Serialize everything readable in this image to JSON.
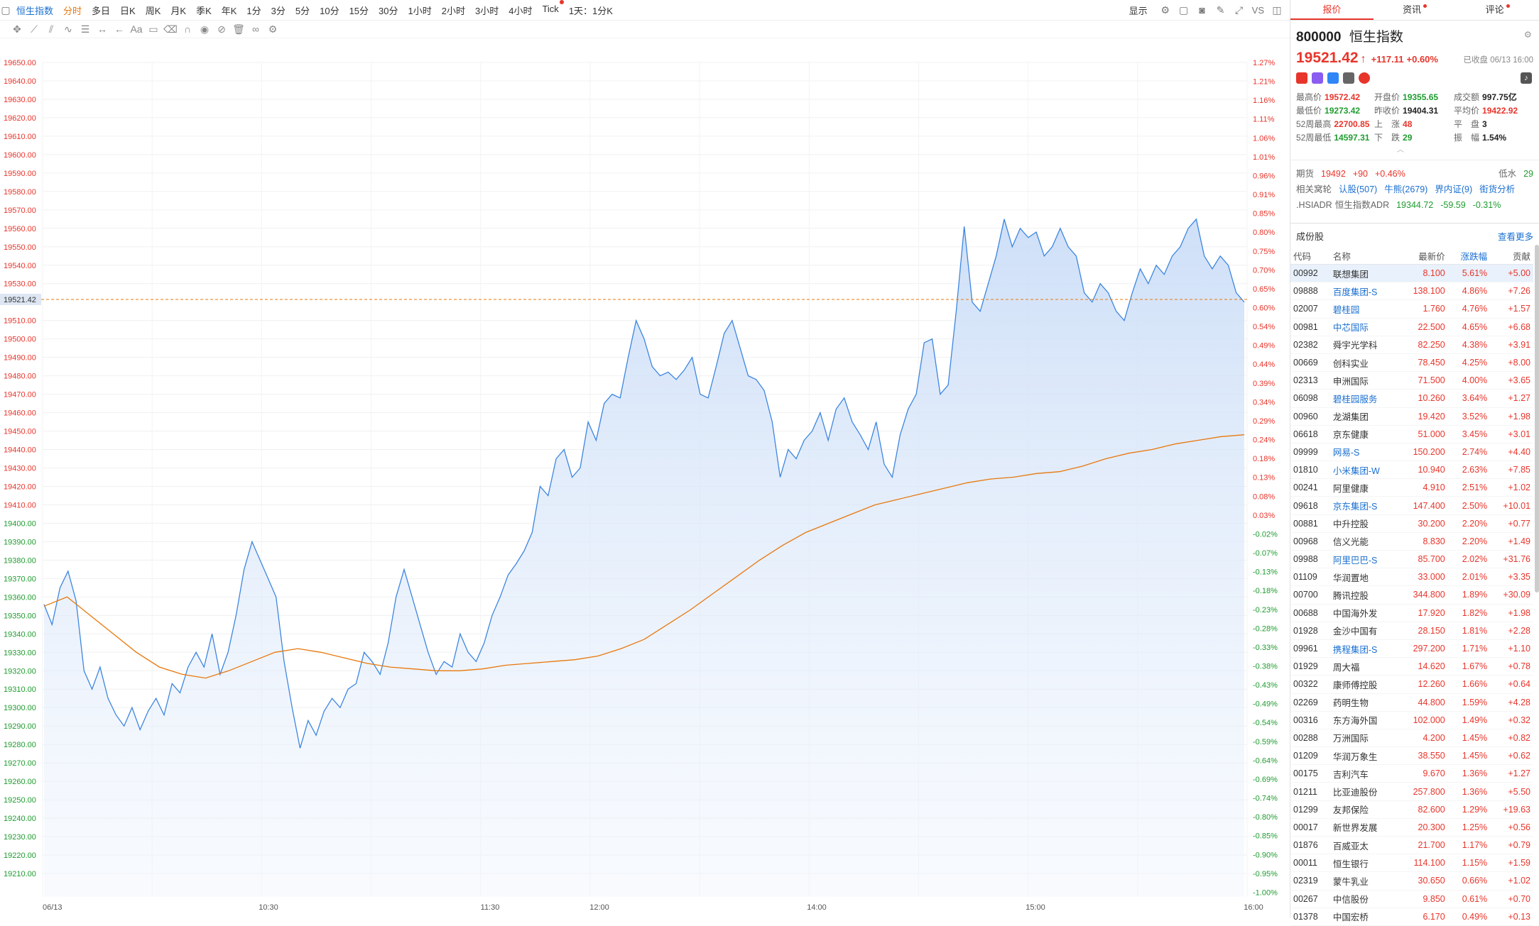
{
  "toolbar": {
    "symbol": "恒生指数",
    "periods": [
      "分时",
      "多日",
      "日K",
      "周K",
      "月K",
      "季K",
      "年K",
      "1分",
      "3分",
      "5分",
      "10分",
      "15分",
      "30分",
      "1小时",
      "2小时",
      "3小时",
      "4小时",
      "Tick",
      "1天：1分K"
    ],
    "active_period": "分时",
    "display_label": "显示",
    "vs_label": "VS"
  },
  "chart": {
    "current_price_label": "19521.42",
    "price_ticks": [
      "19650.00",
      "19640.00",
      "19630.00",
      "19620.00",
      "19610.00",
      "19600.00",
      "19590.00",
      "19580.00",
      "19570.00",
      "19560.00",
      "19550.00",
      "19540.00",
      "19530.00",
      "19510.00",
      "19500.00",
      "19490.00",
      "19480.00",
      "19470.00",
      "19460.00",
      "19450.00",
      "19440.00",
      "19430.00",
      "19420.00",
      "19410.00",
      "19400.00",
      "19390.00",
      "19380.00",
      "19370.00",
      "19360.00",
      "19350.00",
      "19340.00",
      "19330.00",
      "19320.00",
      "19310.00",
      "19300.00",
      "19290.00",
      "19280.00",
      "19270.00",
      "19260.00",
      "19250.00",
      "19240.00",
      "19230.00",
      "19220.00",
      "19210.00"
    ],
    "pct_ticks": [
      "1.27%",
      "1.21%",
      "1.16%",
      "1.11%",
      "1.06%",
      "1.01%",
      "0.96%",
      "0.91%",
      "0.85%",
      "0.80%",
      "0.75%",
      "0.70%",
      "0.65%",
      "0.60%",
      "0.54%",
      "0.49%",
      "0.44%",
      "0.39%",
      "0.34%",
      "0.29%",
      "0.24%",
      "0.18%",
      "0.13%",
      "0.08%",
      "0.03%",
      "-0.02%",
      "-0.07%",
      "-0.13%",
      "-0.18%",
      "-0.23%",
      "-0.28%",
      "-0.33%",
      "-0.38%",
      "-0.43%",
      "-0.49%",
      "-0.54%",
      "-0.59%",
      "-0.64%",
      "-0.69%",
      "-0.74%",
      "-0.80%",
      "-0.85%",
      "-0.90%",
      "-0.95%",
      "-1.00%"
    ],
    "time_ticks": [
      "06/13",
      "10:30",
      "11:30",
      "12:00",
      "14:00",
      "15:00",
      "16:00"
    ]
  },
  "chart_data": {
    "type": "line",
    "ylim": [
      19205,
      19655
    ],
    "series": [
      {
        "values": [
          19356,
          19345,
          19365,
          19374,
          19358,
          19320,
          19310,
          19322,
          19305,
          19296,
          19290,
          19300,
          19288,
          19298,
          19305,
          19296,
          19313,
          19308,
          19322,
          19330,
          19322,
          19340,
          19318,
          19330,
          19350,
          19375,
          19390,
          19380,
          19370,
          19360,
          19325,
          19300,
          19278,
          19293,
          19285,
          19298,
          19305,
          19300,
          19310,
          19313,
          19330,
          19325,
          19318,
          19335,
          19360,
          19375,
          19360,
          19345,
          19330,
          19318,
          19325,
          19322,
          19340,
          19330,
          19325,
          19335,
          19350,
          19360,
          19372,
          19378,
          19385,
          19395,
          19420,
          19415,
          19435,
          19440,
          19425,
          19430,
          19455,
          19445,
          19465,
          19470,
          19468,
          19490,
          19510,
          19500,
          19485,
          19480,
          19482,
          19478,
          19483,
          19490,
          19470,
          19468,
          19485,
          19503,
          19510,
          19495,
          19480,
          19478,
          19472,
          19455,
          19425,
          19440,
          19435,
          19445,
          19450,
          19460,
          19445,
          19462,
          19468,
          19455,
          19448,
          19440,
          19455,
          19432,
          19425,
          19448,
          19462,
          19470,
          19498,
          19500,
          19470,
          19475,
          19515,
          19561,
          19520,
          19515,
          19530,
          19545,
          19565,
          19550,
          19560,
          19555,
          19558,
          19545,
          19550,
          19560,
          19550,
          19545,
          19525,
          19520,
          19530,
          19525,
          19515,
          19510,
          19525,
          19538,
          19530,
          19540,
          19535,
          19545,
          19550,
          19560,
          19565,
          19545,
          19538,
          19545,
          19540,
          19525,
          19520
        ]
      },
      {
        "values": [
          19355,
          19360,
          19350,
          19340,
          19330,
          19322,
          19318,
          19316,
          19320,
          19325,
          19330,
          19332,
          19330,
          19327,
          19324,
          19322,
          19321,
          19320,
          19320,
          19321,
          19323,
          19324,
          19325,
          19326,
          19328,
          19332,
          19337,
          19345,
          19353,
          19362,
          19371,
          19380,
          19388,
          19395,
          19400,
          19405,
          19410,
          19413,
          19416,
          19419,
          19422,
          19424,
          19425,
          19427,
          19428,
          19431,
          19435,
          19438,
          19440,
          19443,
          19445,
          19447,
          19448
        ]
      }
    ]
  },
  "panel": {
    "tabs": [
      "报价",
      "资讯",
      "评论"
    ],
    "code": "800000",
    "name": "恒生指数",
    "price": "19521.42",
    "change": "+117.11",
    "change_pct": "+0.60%",
    "closed_text": "已收盘 06/13 16:00",
    "stats": [
      {
        "label": "最高价",
        "value": "19572.42",
        "cls": "red"
      },
      {
        "label": "开盘价",
        "value": "19355.65",
        "cls": "green"
      },
      {
        "label": "成交额",
        "value": "997.75亿",
        "cls": "dark"
      },
      {
        "label": "最低价",
        "value": "19273.42",
        "cls": "green"
      },
      {
        "label": "昨收价",
        "value": "19404.31",
        "cls": "dark"
      },
      {
        "label": "平均价",
        "value": "19422.92",
        "cls": "red"
      },
      {
        "label": "52周最高",
        "value": "22700.85",
        "cls": "red"
      },
      {
        "label": "上　涨",
        "value": "48",
        "cls": "red"
      },
      {
        "label": "平　盘",
        "value": "3",
        "cls": "dark"
      },
      {
        "label": "52周最低",
        "value": "14597.31",
        "cls": "green"
      },
      {
        "label": "下　跌",
        "value": "29",
        "cls": "green"
      },
      {
        "label": "振　幅",
        "value": "1.54%",
        "cls": "dark"
      }
    ],
    "futures": {
      "label": "期货",
      "price": "19492",
      "change": "+90",
      "pct": "+0.46%",
      "low_label": "低水",
      "low_value": "29"
    },
    "related": {
      "label": "相关窝轮",
      "items": [
        "认股(507)",
        "牛熊(2679)",
        "界内证(9)",
        "街货分析"
      ]
    },
    "adr": {
      "code": ".HSIADR",
      "name": "恒生指数ADR",
      "price": "19344.72",
      "change": "-59.59",
      "pct": "-0.31%"
    },
    "constituents_title": "成份股",
    "more_label": "查看更多",
    "columns": [
      "代码",
      "名称",
      "最新价",
      "涨跌幅",
      "贡献"
    ],
    "rows": [
      [
        "00992",
        "联想集团",
        "8.100",
        "5.61%",
        "+5.00"
      ],
      [
        "09888",
        "百度集团-S",
        "138.100",
        "4.86%",
        "+7.26"
      ],
      [
        "02007",
        "碧桂园",
        "1.760",
        "4.76%",
        "+1.57"
      ],
      [
        "00981",
        "中芯国际",
        "22.500",
        "4.65%",
        "+6.68"
      ],
      [
        "02382",
        "舜宇光学科",
        "82.250",
        "4.38%",
        "+3.91"
      ],
      [
        "00669",
        "创科实业",
        "78.450",
        "4.25%",
        "+8.00"
      ],
      [
        "02313",
        "申洲国际",
        "71.500",
        "4.00%",
        "+3.65"
      ],
      [
        "06098",
        "碧桂园服务",
        "10.260",
        "3.64%",
        "+1.27"
      ],
      [
        "00960",
        "龙湖集团",
        "19.420",
        "3.52%",
        "+1.98"
      ],
      [
        "06618",
        "京东健康",
        "51.000",
        "3.45%",
        "+3.01"
      ],
      [
        "09999",
        "网易-S",
        "150.200",
        "2.74%",
        "+4.40"
      ],
      [
        "01810",
        "小米集团-W",
        "10.940",
        "2.63%",
        "+7.85"
      ],
      [
        "00241",
        "阿里健康",
        "4.910",
        "2.51%",
        "+1.02"
      ],
      [
        "09618",
        "京东集团-S",
        "147.400",
        "2.50%",
        "+10.01"
      ],
      [
        "00881",
        "中升控股",
        "30.200",
        "2.20%",
        "+0.77"
      ],
      [
        "00968",
        "信义光能",
        "8.830",
        "2.20%",
        "+1.49"
      ],
      [
        "09988",
        "阿里巴巴-S",
        "85.700",
        "2.02%",
        "+31.76"
      ],
      [
        "01109",
        "华润置地",
        "33.000",
        "2.01%",
        "+3.35"
      ],
      [
        "00700",
        "腾讯控股",
        "344.800",
        "1.89%",
        "+30.09"
      ],
      [
        "00688",
        "中国海外发",
        "17.920",
        "1.82%",
        "+1.98"
      ],
      [
        "01928",
        "金沙中国有",
        "28.150",
        "1.81%",
        "+2.28"
      ],
      [
        "09961",
        "携程集团-S",
        "297.200",
        "1.71%",
        "+1.10"
      ],
      [
        "01929",
        "周大福",
        "14.620",
        "1.67%",
        "+0.78"
      ],
      [
        "00322",
        "康师傅控股",
        "12.260",
        "1.66%",
        "+0.64"
      ],
      [
        "02269",
        "药明生物",
        "44.800",
        "1.59%",
        "+4.28"
      ],
      [
        "00316",
        "东方海外国",
        "102.000",
        "1.49%",
        "+0.32"
      ],
      [
        "00288",
        "万洲国际",
        "4.200",
        "1.45%",
        "+0.82"
      ],
      [
        "01209",
        "华润万象生",
        "38.550",
        "1.45%",
        "+0.62"
      ],
      [
        "00175",
        "吉利汽车",
        "9.670",
        "1.36%",
        "+1.27"
      ],
      [
        "01211",
        "比亚迪股份",
        "257.800",
        "1.36%",
        "+5.50"
      ],
      [
        "01299",
        "友邦保险",
        "82.600",
        "1.29%",
        "+19.63"
      ],
      [
        "00017",
        "新世界发展",
        "20.300",
        "1.25%",
        "+0.56"
      ],
      [
        "01876",
        "百威亚太",
        "21.700",
        "1.17%",
        "+0.79"
      ],
      [
        "00011",
        "恒生银行",
        "114.100",
        "1.15%",
        "+1.59"
      ],
      [
        "02319",
        "蒙牛乳业",
        "30.650",
        "0.66%",
        "+1.02"
      ],
      [
        "00267",
        "中信股份",
        "9.850",
        "0.61%",
        "+0.70"
      ],
      [
        "01378",
        "中国宏桥",
        "6.170",
        "0.49%",
        "+0.13"
      ]
    ],
    "blue_names": [
      "百度集团-S",
      "碧桂园",
      "中芯国际",
      "碧桂园服务",
      "网易-S",
      "小米集团-W",
      "京东集团-S",
      "阿里巴巴-S",
      "携程集团-S"
    ]
  }
}
